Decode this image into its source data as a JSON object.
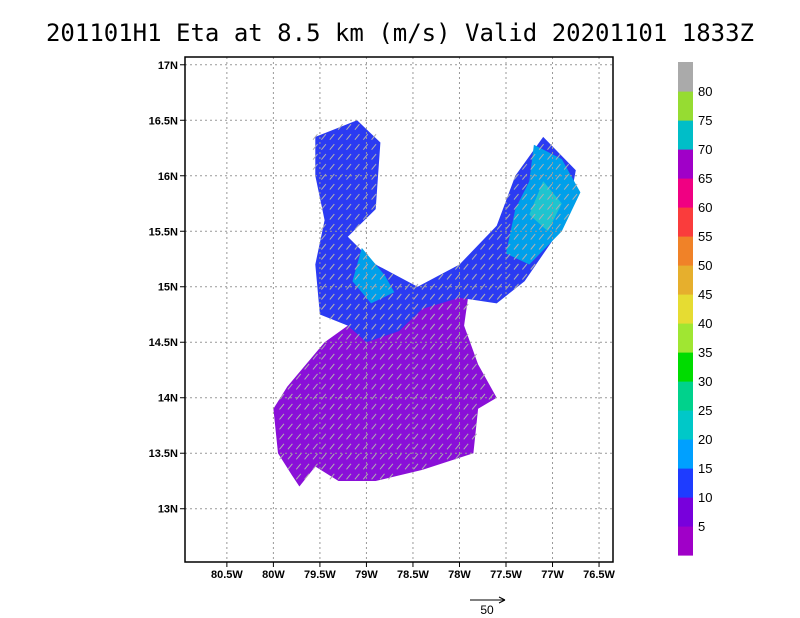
{
  "chart_data": {
    "type": "heatmap",
    "title": "201101H1 Eta at 8.5 km (m/s) Valid 20201101 1833Z",
    "xlabel": "",
    "ylabel": "",
    "x_ticks": [
      "80.5W",
      "80W",
      "79.5W",
      "79W",
      "78.5W",
      "78W",
      "77.5W",
      "77W",
      "76.5W"
    ],
    "y_ticks": [
      "17N",
      "16.5N",
      "16N",
      "15.5N",
      "15N",
      "14.5N",
      "14N",
      "13.5N",
      "13N"
    ],
    "xlim": [
      -80.95,
      -76.35
    ],
    "ylim": [
      12.52,
      17.07
    ],
    "grid": true,
    "colorbar": {
      "labels": [
        "5",
        "10",
        "15",
        "20",
        "25",
        "30",
        "35",
        "40",
        "45",
        "50",
        "55",
        "60",
        "65",
        "70",
        "75",
        "80"
      ],
      "colors": [
        "#a000c8",
        "#7800dc",
        "#1e3cff",
        "#00a0ff",
        "#00c8c8",
        "#00d28c",
        "#00dc00",
        "#a0e632",
        "#e6dc32",
        "#e6af2d",
        "#f08228",
        "#fa3c3c",
        "#f00082",
        "#a000c8",
        "#00bec8",
        "#96dc32",
        "#aaaaaa"
      ]
    },
    "wind_speed_regions": [
      {
        "band": "5-10",
        "color": "#8a10d8",
        "polygon": [
          [
            -79.72,
            13.2
          ],
          [
            -79.55,
            13.38
          ],
          [
            -79.3,
            13.25
          ],
          [
            -78.9,
            13.25
          ],
          [
            -78.4,
            13.35
          ],
          [
            -77.85,
            13.5
          ],
          [
            -77.8,
            13.9
          ],
          [
            -77.6,
            14.0
          ],
          [
            -77.8,
            14.3
          ],
          [
            -77.95,
            14.65
          ],
          [
            -77.9,
            14.95
          ],
          [
            -78.15,
            15.0
          ],
          [
            -78.6,
            15.0
          ],
          [
            -79.2,
            14.65
          ],
          [
            -79.45,
            14.5
          ],
          [
            -79.65,
            14.3
          ],
          [
            -79.85,
            14.1
          ],
          [
            -80.0,
            13.9
          ],
          [
            -79.95,
            13.5
          ],
          [
            -79.8,
            13.3
          ]
        ]
      },
      {
        "band": "10-15",
        "color": "#2b3bf2",
        "polygon": [
          [
            -79.55,
            16.35
          ],
          [
            -79.1,
            16.5
          ],
          [
            -78.85,
            16.3
          ],
          [
            -78.9,
            15.7
          ],
          [
            -79.2,
            15.45
          ],
          [
            -78.9,
            15.2
          ],
          [
            -78.45,
            15.0
          ],
          [
            -78.0,
            15.2
          ],
          [
            -77.6,
            15.55
          ],
          [
            -77.4,
            16.0
          ],
          [
            -77.1,
            16.35
          ],
          [
            -76.75,
            16.05
          ],
          [
            -76.85,
            15.6
          ],
          [
            -77.3,
            15.05
          ],
          [
            -77.6,
            14.85
          ],
          [
            -78.0,
            14.9
          ],
          [
            -78.4,
            14.8
          ],
          [
            -78.65,
            14.6
          ],
          [
            -79.0,
            14.5
          ],
          [
            -79.2,
            14.65
          ],
          [
            -79.5,
            14.75
          ],
          [
            -79.55,
            15.2
          ],
          [
            -79.45,
            15.6
          ],
          [
            -79.55,
            16.0
          ]
        ]
      },
      {
        "band": "15-20",
        "color": "#00a0ea",
        "polygon": [
          [
            -77.2,
            16.28
          ],
          [
            -76.9,
            16.15
          ],
          [
            -76.7,
            15.85
          ],
          [
            -76.9,
            15.5
          ],
          [
            -77.25,
            15.2
          ],
          [
            -77.5,
            15.3
          ],
          [
            -77.4,
            15.7
          ],
          [
            -77.25,
            15.95
          ]
        ]
      },
      {
        "band": "15-20",
        "color": "#00a0ea",
        "polygon": [
          [
            -79.05,
            15.35
          ],
          [
            -78.8,
            15.1
          ],
          [
            -78.7,
            14.95
          ],
          [
            -78.95,
            14.85
          ],
          [
            -79.15,
            15.05
          ]
        ]
      },
      {
        "band": "20-25",
        "color": "#1fc4cf",
        "polygon": [
          [
            -77.1,
            15.95
          ],
          [
            -76.9,
            15.75
          ],
          [
            -77.05,
            15.5
          ],
          [
            -77.25,
            15.65
          ]
        ]
      }
    ],
    "reference_vector": {
      "label": "50"
    }
  }
}
